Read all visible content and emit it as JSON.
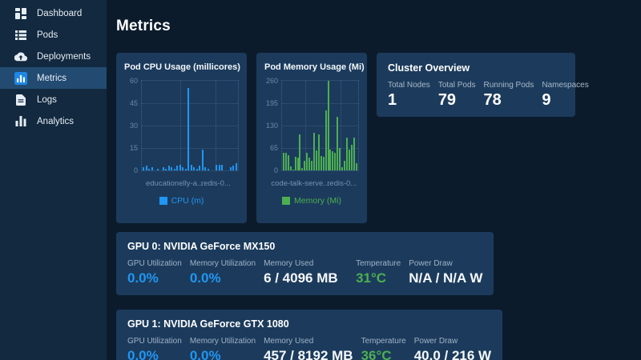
{
  "colors": {
    "blue": "#2196f3",
    "green": "#4caf50",
    "white": "#f5f8fa",
    "panel": "#1c3b5c",
    "sidebar": "#12293f",
    "background": "#0c1b2c"
  },
  "sidebar": {
    "items": [
      {
        "label": "Dashboard",
        "icon": "dashboard-icon",
        "active": false
      },
      {
        "label": "Pods",
        "icon": "list-icon",
        "active": false
      },
      {
        "label": "Deployments",
        "icon": "cloud-upload-icon",
        "active": false
      },
      {
        "label": "Metrics",
        "icon": "metrics-chart-icon",
        "active": true
      },
      {
        "label": "Logs",
        "icon": "document-icon",
        "active": false
      },
      {
        "label": "Analytics",
        "icon": "bar-chart-icon",
        "active": false
      }
    ]
  },
  "header": {
    "title": "Metrics"
  },
  "chart_data": [
    {
      "type": "bar",
      "title": "Pod CPU Usage (millicores)",
      "legend": "CPU (m)",
      "color": "#2196f3",
      "ylim": [
        0,
        60
      ],
      "yticks": [
        60,
        45,
        30,
        15,
        0
      ],
      "xtick_labels": [
        "educationelly-a...",
        "redis-0..."
      ],
      "values": [
        2,
        3,
        1,
        2,
        0,
        1,
        0,
        2,
        1,
        3,
        2,
        1,
        3,
        4,
        2,
        1,
        55,
        4,
        2,
        1,
        3,
        14,
        2,
        1,
        0,
        0,
        4,
        4,
        4,
        0,
        0,
        2,
        3,
        5
      ]
    },
    {
      "type": "bar",
      "title": "Pod Memory Usage (Mi)",
      "legend": "Memory (Mi)",
      "color": "#4caf50",
      "ylim": [
        0,
        260
      ],
      "yticks": [
        260,
        195,
        130,
        65,
        0
      ],
      "xtick_labels": [
        "code-talk-serve...",
        "redis-0..."
      ],
      "values": [
        50,
        50,
        45,
        12,
        3,
        40,
        38,
        105,
        8,
        28,
        50,
        38,
        28,
        110,
        58,
        105,
        42,
        40,
        175,
        260,
        60,
        55,
        50,
        155,
        65,
        10,
        28,
        95,
        60,
        75,
        95,
        20
      ]
    }
  ],
  "cluster_overview": {
    "title": "Cluster Overview",
    "stats": [
      {
        "label": "Total Nodes",
        "value": "1"
      },
      {
        "label": "Total Pods",
        "value": "79"
      },
      {
        "label": "Running Pods",
        "value": "78"
      },
      {
        "label": "Namespaces",
        "value": "9"
      }
    ]
  },
  "gpus": [
    {
      "title": "GPU 0: NVIDIA GeForce MX150",
      "metrics": [
        {
          "label": "GPU Utilization",
          "value": "0.0%",
          "color": "#2196f3"
        },
        {
          "label": "Memory Utilization",
          "value": "0.0%",
          "color": "#2196f3"
        },
        {
          "label": "Memory Used",
          "value": "6 / 4096 MB",
          "color": "#f5f8fa"
        },
        {
          "label": "Temperature",
          "value": "31°C",
          "color": "#4caf50"
        },
        {
          "label": "Power Draw",
          "value": "N/A / N/A W",
          "color": "#f5f8fa"
        }
      ]
    },
    {
      "title": "GPU 1: NVIDIA GeForce GTX 1080",
      "metrics": [
        {
          "label": "GPU Utilization",
          "value": "0.0%",
          "color": "#2196f3"
        },
        {
          "label": "Memory Utilization",
          "value": "0.0%",
          "color": "#2196f3"
        },
        {
          "label": "Memory Used",
          "value": "457 / 8192 MB",
          "color": "#f5f8fa"
        },
        {
          "label": "Temperature",
          "value": "36°C",
          "color": "#4caf50"
        },
        {
          "label": "Power Draw",
          "value": "40.0 / 216 W",
          "color": "#f5f8fa"
        }
      ]
    }
  ]
}
